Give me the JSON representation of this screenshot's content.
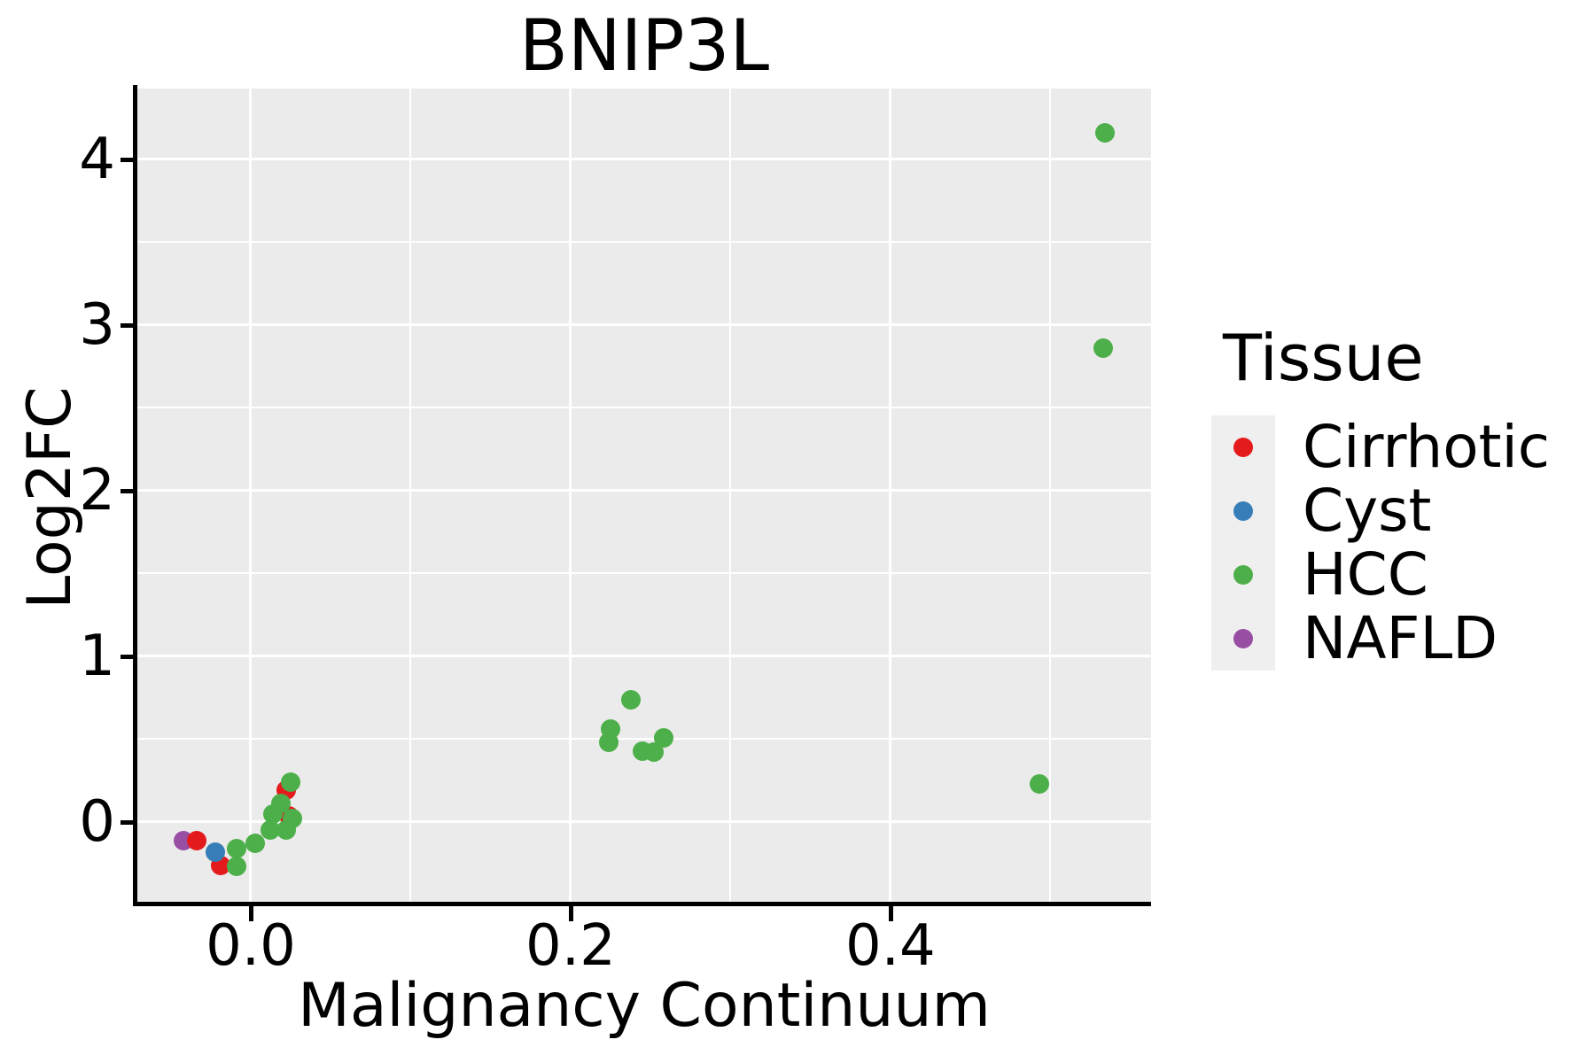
{
  "figure": {
    "title": "BNIP3L"
  },
  "chart_data": {
    "type": "scatter",
    "title": "BNIP3L",
    "xlabel": "Malignancy Continuum",
    "ylabel": "Log2FC",
    "legend_title": "Tissue",
    "legend_position": "right",
    "grid": true,
    "xlim": [
      -0.0709,
      0.563
    ],
    "ylim": [
      -0.492,
      4.427
    ],
    "x_ticks": {
      "values": [
        0.0,
        0.2,
        0.4
      ],
      "labels": [
        "0.0",
        "0.2",
        "0.4"
      ],
      "minor": [
        0.1,
        0.3,
        0.5
      ]
    },
    "y_ticks": {
      "values": [
        0,
        1,
        2,
        3,
        4
      ],
      "labels": [
        "0",
        "1",
        "2",
        "3",
        "4"
      ],
      "minor": [
        0.5,
        1.5,
        2.5,
        3.5
      ]
    },
    "series": [
      {
        "name": "NAFLD",
        "color": "#984ea3",
        "points": [
          [
            -0.042,
            -0.11
          ]
        ]
      },
      {
        "name": "Cirrhotic",
        "color": "#e41a1c",
        "points": [
          [
            -0.034,
            -0.11
          ],
          [
            -0.019,
            -0.26
          ],
          [
            0.024,
            0.04
          ],
          [
            0.022,
            0.19
          ]
        ]
      },
      {
        "name": "Cyst",
        "color": "#377eb8",
        "points": [
          [
            -0.022,
            -0.18
          ]
        ]
      },
      {
        "name": "HCC",
        "color": "#4daf4a",
        "points": [
          [
            -0.009,
            -0.16
          ],
          [
            -0.009,
            -0.27
          ],
          [
            0.003,
            -0.13
          ],
          [
            0.012,
            -0.05
          ],
          [
            0.022,
            -0.05
          ],
          [
            0.026,
            0.02
          ],
          [
            0.014,
            0.05
          ],
          [
            0.019,
            0.11
          ],
          [
            0.025,
            0.24
          ],
          [
            0.224,
            0.48
          ],
          [
            0.225,
            0.56
          ],
          [
            0.238,
            0.74
          ],
          [
            0.245,
            0.43
          ],
          [
            0.252,
            0.42
          ],
          [
            0.258,
            0.51
          ],
          [
            0.493,
            0.23
          ],
          [
            0.533,
            2.86
          ],
          [
            0.534,
            4.16
          ]
        ]
      }
    ],
    "legend_order": [
      "Cirrhotic",
      "Cyst",
      "HCC",
      "NAFLD"
    ]
  },
  "colors": {
    "background": "#ffffff",
    "panel_background": "#ebebeb",
    "gridline": "#ffffff",
    "axis": "#000000",
    "text": "#000000",
    "legend_key_background": "#efefef"
  }
}
